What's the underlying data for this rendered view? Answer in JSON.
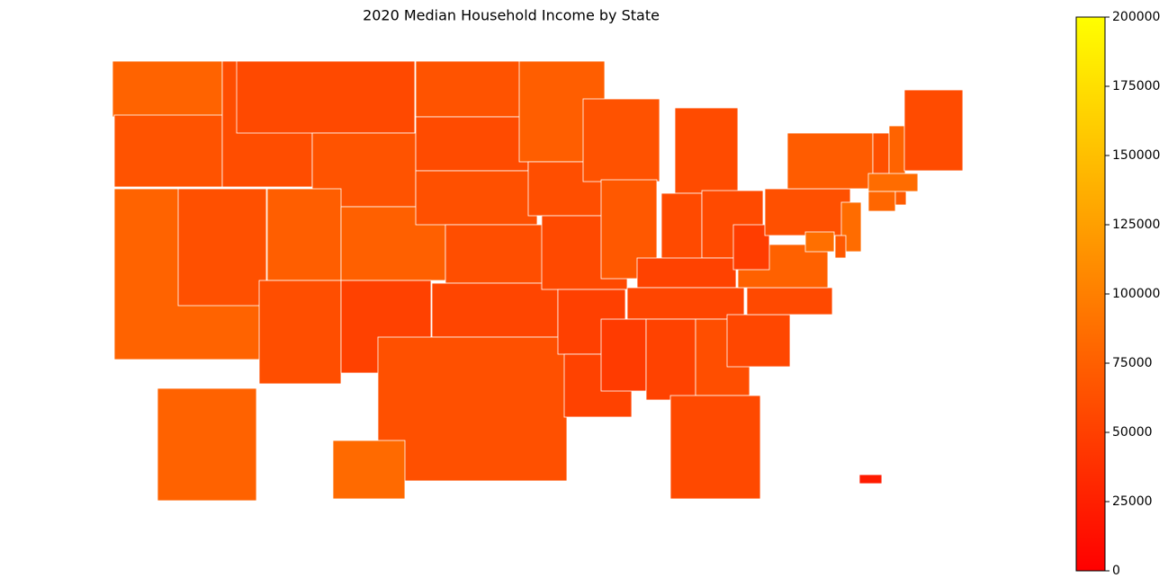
{
  "chart_data": {
    "type": "choropleth",
    "title": "2020 Median Household Income by State",
    "colormap": "autumn",
    "values": [
      78000,
      65000,
      78000,
      63000,
      60000,
      57000,
      65000,
      74000,
      75000,
      61000,
      51000,
      65000,
      59000,
      63000,
      61000,
      54000,
      63000,
      74000,
      61000,
      57000,
      50000,
      52000,
      64000,
      69000,
      59000,
      58000,
      58000,
      52000,
      54000,
      46000,
      52000,
      61000,
      57000,
      56000,
      57000,
      76000,
      48000,
      63000,
      72000,
      63000,
      78000,
      59000,
      85000,
      80000,
      71000,
      85000,
      70000,
      87000,
      77000,
      83000,
      21000
    ],
    "ylim": [
      0,
      200000
    ],
    "yticks": [
      0,
      25000,
      50000,
      75000,
      100000,
      125000,
      150000,
      175000,
      200000
    ]
  }
}
